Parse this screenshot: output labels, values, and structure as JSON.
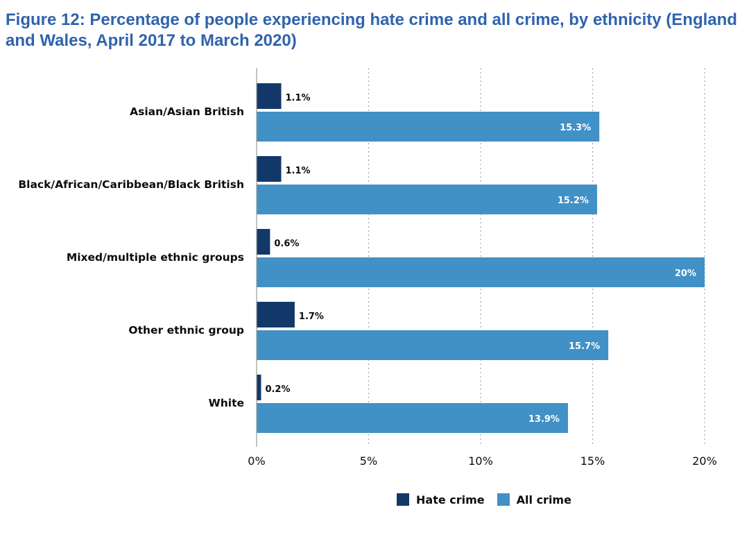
{
  "chart_data": {
    "type": "bar",
    "orientation": "horizontal",
    "title": "Figure 12: Percentage of people experiencing hate crime and all crime, by ethnicity (England and Wales, April 2017 to March 2020)",
    "categories": [
      "Asian/Asian British",
      "Black/African/Caribbean/Black British",
      "Mixed/multiple ethnic groups",
      "Other ethnic group",
      "White"
    ],
    "series": [
      {
        "name": "Hate crime",
        "color": "#12386a",
        "values": [
          1.1,
          1.1,
          0.6,
          1.7,
          0.2
        ],
        "labels": [
          "1.1%",
          "1.1%",
          "0.6%",
          "1.7%",
          "0.2%"
        ]
      },
      {
        "name": "All crime",
        "color": "#4190c6",
        "values": [
          15.3,
          15.2,
          20,
          15.7,
          13.9
        ],
        "labels": [
          "15.3%",
          "15.2%",
          "20%",
          "15.7%",
          "13.9%"
        ]
      }
    ],
    "xlim": [
      0,
      20
    ],
    "xticks": [
      0,
      5,
      10,
      15,
      20
    ],
    "xtick_labels": [
      "0%",
      "5%",
      "10%",
      "15%",
      "20%"
    ],
    "grid": "vertical dotted",
    "legend_position": "bottom"
  }
}
